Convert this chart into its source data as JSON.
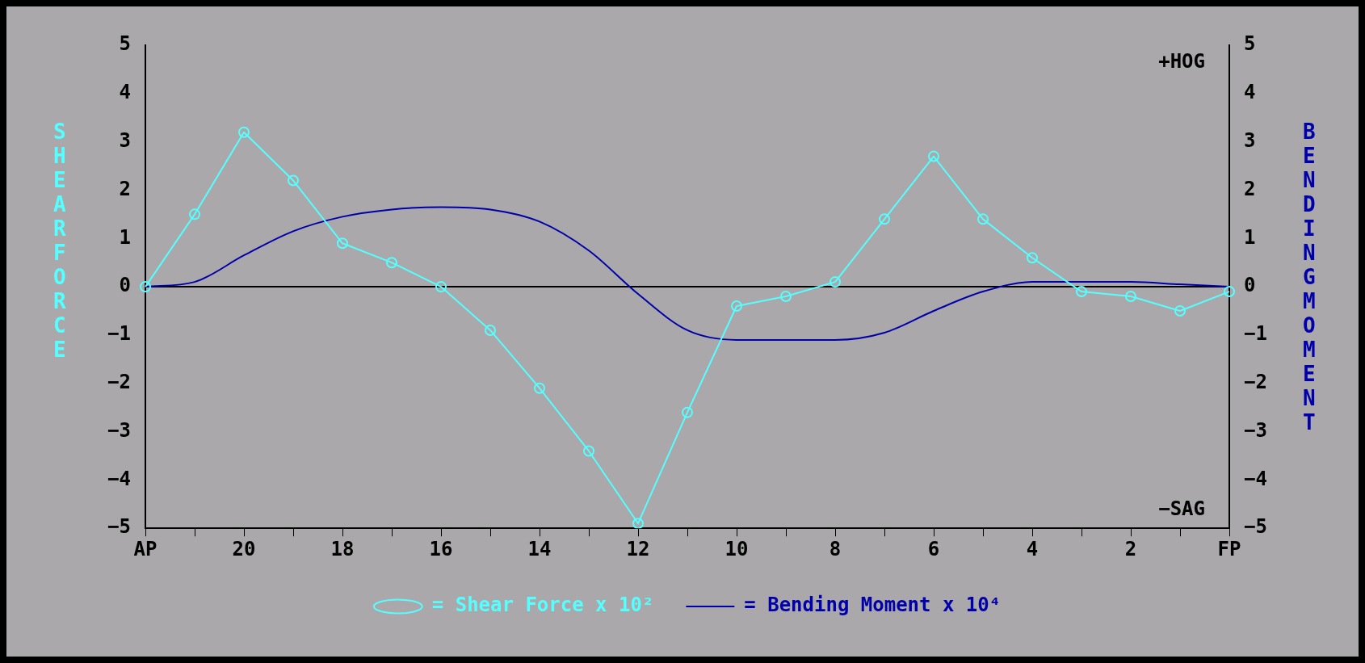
{
  "chart_data": {
    "type": "line",
    "categories": [
      "AP",
      null,
      "20",
      null,
      "18",
      null,
      "16",
      null,
      "14",
      null,
      "12",
      null,
      "10",
      null,
      "8",
      null,
      "6",
      null,
      "4",
      null,
      "2",
      null,
      "FP"
    ],
    "ylabel": "SHEAR FORCE",
    "y2label": "BENDING MOMENT",
    "ylim": [
      -5,
      5
    ],
    "yticks": [
      -5,
      -4,
      -3,
      -2,
      -1,
      0,
      1,
      2,
      3,
      4,
      5
    ],
    "y2lim": [
      -5,
      5
    ],
    "y2ticks": [
      -5,
      -4,
      -3,
      -2,
      -1,
      0,
      1,
      2,
      3,
      4,
      5
    ],
    "series": [
      {
        "name": "= Shear Force x 10²",
        "color": "#55ffff",
        "marker": "circle",
        "values": [
          0,
          1.5,
          3.2,
          2.2,
          0.9,
          0.5,
          0,
          -0.9,
          -2.1,
          -3.4,
          -4.9,
          -2.6,
          -0.4,
          -0.2,
          0.1,
          1.4,
          2.7,
          1.4,
          0.6,
          -0.1,
          -0.2,
          -0.5,
          -0.1
        ]
      },
      {
        "name": "= Bending Moment x 10⁴",
        "color": "#0000aa",
        "marker": "none",
        "axis": "y2",
        "values": [
          0,
          0.1,
          0.65,
          1.15,
          1.45,
          1.6,
          1.65,
          1.6,
          1.35,
          0.75,
          -0.15,
          -0.9,
          -1.1,
          -1.1,
          -1.1,
          -0.95,
          -0.5,
          -0.1,
          0.1,
          0.1,
          0.1,
          0.05,
          0
        ]
      }
    ],
    "ref_lines": [
      {
        "axis": "y",
        "value": 0,
        "color": "#000000"
      }
    ],
    "annotations": [
      "+HOG",
      "−SAG"
    ],
    "grid": false,
    "legend": "bottom",
    "line_style": "solid"
  }
}
